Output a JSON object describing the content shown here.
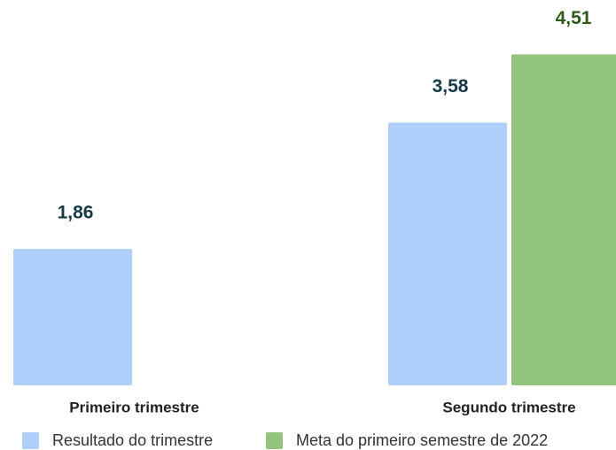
{
  "chart_data": {
    "type": "bar",
    "categories": [
      "Primeiro trimestre",
      "Segundo trimestre"
    ],
    "series": [
      {
        "name": "Resultado do trimestre",
        "color": "#aecffa",
        "label_color": "#163a45",
        "values": [
          1.86,
          3.58
        ],
        "value_labels": [
          "1,86",
          "3,58"
        ]
      },
      {
        "name": "Meta do primeiro semestre de 2022",
        "color": "#93c47d",
        "label_color": "#2d5a17",
        "values": [
          null,
          4.51
        ],
        "value_labels": [
          null,
          "4,51"
        ]
      }
    ],
    "ylim": [
      0,
      5.25
    ]
  }
}
